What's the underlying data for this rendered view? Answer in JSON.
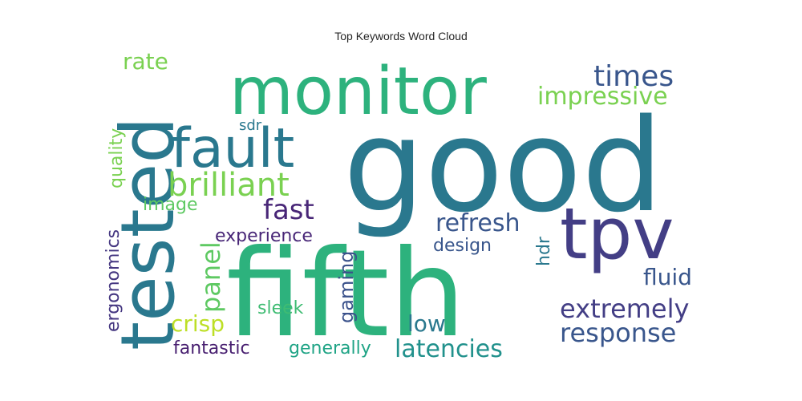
{
  "chart_data": {
    "type": "wordcloud",
    "title": "Top Keywords Word Cloud",
    "colormap": "viridis",
    "words": [
      {
        "text": "good",
        "color": "#2a788e"
      },
      {
        "text": "fifth",
        "color": "#2db27d"
      },
      {
        "text": "monitor",
        "color": "#2db27d"
      },
      {
        "text": "tested",
        "color": "#2a788e"
      },
      {
        "text": "tpv",
        "color": "#433e85"
      },
      {
        "text": "fault",
        "color": "#2a788e"
      },
      {
        "text": "brilliant",
        "color": "#7ad151"
      },
      {
        "text": "times",
        "color": "#39568c"
      },
      {
        "text": "impressive",
        "color": "#7ad151"
      },
      {
        "text": "rate",
        "color": "#7ad151"
      },
      {
        "text": "extremely",
        "color": "#433e85"
      },
      {
        "text": "response",
        "color": "#39568c"
      },
      {
        "text": "fast",
        "color": "#482677"
      },
      {
        "text": "refresh",
        "color": "#39568c"
      },
      {
        "text": "latencies",
        "color": "#21918c"
      },
      {
        "text": "panel",
        "color": "#5ec962"
      },
      {
        "text": "quality",
        "color": "#7ad151"
      },
      {
        "text": "ergonomics",
        "color": "#453781"
      },
      {
        "text": "fluid",
        "color": "#39568c"
      },
      {
        "text": "low",
        "color": "#2a788e"
      },
      {
        "text": "crisp",
        "color": "#bddf26"
      },
      {
        "text": "experience",
        "color": "#482677"
      },
      {
        "text": "gaming",
        "color": "#3b528b"
      },
      {
        "text": "design",
        "color": "#39568c"
      },
      {
        "text": "hdr",
        "color": "#2a788e"
      },
      {
        "text": "image",
        "color": "#5ec962"
      },
      {
        "text": "sleek",
        "color": "#3fbc73"
      },
      {
        "text": "sdr",
        "color": "#2a788e"
      },
      {
        "text": "fantastic",
        "color": "#481f70"
      },
      {
        "text": "generally",
        "color": "#20a486"
      }
    ]
  }
}
